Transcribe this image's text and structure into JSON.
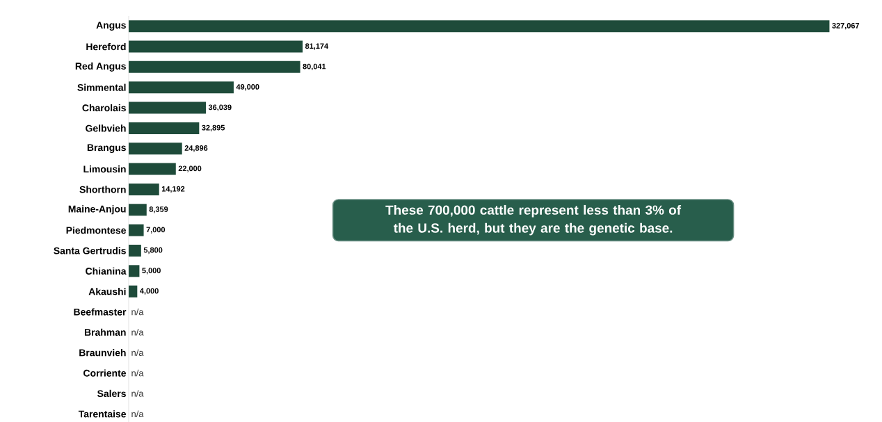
{
  "chart_data": {
    "type": "bar",
    "orientation": "horizontal",
    "categories": [
      "Angus",
      "Hereford",
      "Red Angus",
      "Simmental",
      "Charolais",
      "Gelbvieh",
      "Brangus",
      "Limousin",
      "Shorthorn",
      "Maine-Anjou",
      "Piedmontese",
      "Santa Gertrudis",
      "Chianina",
      "Akaushi",
      "Beefmaster",
      "Brahman",
      "Braunvieh",
      "Corriente",
      "Salers",
      "Tarentaise"
    ],
    "values": [
      327067,
      81174,
      80041,
      49000,
      36039,
      32895,
      24896,
      22000,
      14192,
      8359,
      7000,
      5800,
      5000,
      4000,
      null,
      null,
      null,
      null,
      null,
      null
    ],
    "value_labels": [
      "327,067",
      "81,174",
      "80,041",
      "49,000",
      "36,039",
      "32,895",
      "24,896",
      "22,000",
      "14,192",
      "8,359",
      "7,000",
      "5,800",
      "5,000",
      "4,000",
      "n/a",
      "n/a",
      "n/a",
      "n/a",
      "n/a",
      "n/a"
    ],
    "color": "#1e4b3a",
    "tick_labels": "y",
    "annotations": [
      "These 700,000 cattle represent less than 3% of the U.S. herd, but they are the genetic base."
    ]
  }
}
